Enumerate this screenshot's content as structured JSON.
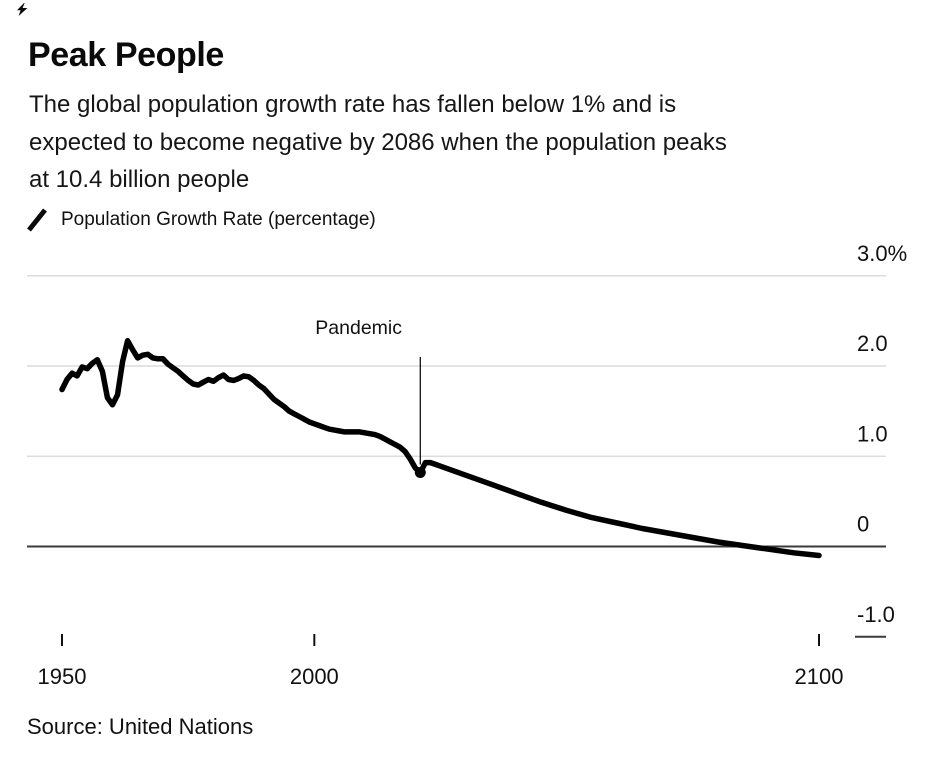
{
  "header": {
    "title": "Peak People",
    "subtitle_lines": [
      "The global population growth rate has fallen below 1% and is",
      "expected to become negative by 2086 when the population peaks",
      "at 10.4 billion people"
    ]
  },
  "legend": {
    "label": "Population Growth Rate (percentage)",
    "swatch": "diagonal-line"
  },
  "footer": {
    "source": "Source: United Nations"
  },
  "icons": {
    "top_left": "bolt-icon",
    "legend_swatch": "line-swatch-icon"
  },
  "colors": {
    "background": "#ffffff",
    "text": "#111111",
    "series_line": "#000000",
    "gridline": "#dcdcdc",
    "axis_line": "#3a3a3a"
  },
  "chart_data": {
    "type": "line",
    "title": "Peak People",
    "xlabel": "",
    "ylabel": "Population growth rate (%)",
    "x_range": [
      1950,
      2100
    ],
    "y_range": [
      -1.0,
      3.0
    ],
    "grid": "horizontal",
    "legend_position": "top-left",
    "yticks": [
      {
        "label": "3.0%",
        "value": 3.0
      },
      {
        "label": "2.0",
        "value": 2.0
      },
      {
        "label": "1.0",
        "value": 1.0
      },
      {
        "label": "0",
        "value": 0.0
      },
      {
        "label": "-1.0",
        "value": -1.0
      }
    ],
    "xticks": [
      {
        "label": "1950",
        "year": 1950
      },
      {
        "label": "2000",
        "year": 2000
      },
      {
        "label": "2100",
        "year": 2100
      }
    ],
    "annotation": {
      "label": "Pandemic",
      "year": 2021,
      "value": 0.82
    },
    "series": [
      {
        "name": "Population Growth Rate (percentage)",
        "points": [
          [
            1950,
            1.74
          ],
          [
            1951,
            1.85
          ],
          [
            1952,
            1.92
          ],
          [
            1953,
            1.89
          ],
          [
            1954,
            1.99
          ],
          [
            1955,
            1.97
          ],
          [
            1956,
            2.03
          ],
          [
            1957,
            2.07
          ],
          [
            1958,
            1.94
          ],
          [
            1959,
            1.65
          ],
          [
            1960,
            1.57
          ],
          [
            1961,
            1.68
          ],
          [
            1962,
            2.05
          ],
          [
            1963,
            2.28
          ],
          [
            1964,
            2.18
          ],
          [
            1965,
            2.09
          ],
          [
            1966,
            2.12
          ],
          [
            1967,
            2.13
          ],
          [
            1968,
            2.09
          ],
          [
            1969,
            2.08
          ],
          [
            1970,
            2.08
          ],
          [
            1971,
            2.02
          ],
          [
            1972,
            1.98
          ],
          [
            1973,
            1.94
          ],
          [
            1974,
            1.89
          ],
          [
            1975,
            1.84
          ],
          [
            1976,
            1.8
          ],
          [
            1977,
            1.79
          ],
          [
            1978,
            1.82
          ],
          [
            1979,
            1.85
          ],
          [
            1980,
            1.83
          ],
          [
            1981,
            1.87
          ],
          [
            1982,
            1.9
          ],
          [
            1983,
            1.85
          ],
          [
            1984,
            1.84
          ],
          [
            1985,
            1.86
          ],
          [
            1986,
            1.89
          ],
          [
            1987,
            1.88
          ],
          [
            1988,
            1.84
          ],
          [
            1989,
            1.79
          ],
          [
            1990,
            1.75
          ],
          [
            1991,
            1.69
          ],
          [
            1992,
            1.63
          ],
          [
            1993,
            1.59
          ],
          [
            1994,
            1.55
          ],
          [
            1995,
            1.5
          ],
          [
            1996,
            1.47
          ],
          [
            1997,
            1.44
          ],
          [
            1998,
            1.41
          ],
          [
            1999,
            1.38
          ],
          [
            2000,
            1.36
          ],
          [
            2001,
            1.34
          ],
          [
            2002,
            1.32
          ],
          [
            2003,
            1.3
          ],
          [
            2004,
            1.29
          ],
          [
            2005,
            1.28
          ],
          [
            2006,
            1.27
          ],
          [
            2007,
            1.27
          ],
          [
            2008,
            1.27
          ],
          [
            2009,
            1.27
          ],
          [
            2010,
            1.26
          ],
          [
            2011,
            1.25
          ],
          [
            2012,
            1.24
          ],
          [
            2013,
            1.22
          ],
          [
            2014,
            1.19
          ],
          [
            2015,
            1.16
          ],
          [
            2016,
            1.13
          ],
          [
            2017,
            1.1
          ],
          [
            2018,
            1.05
          ],
          [
            2019,
            0.97
          ],
          [
            2020,
            0.87
          ],
          [
            2021,
            0.82
          ],
          [
            2022,
            0.93
          ],
          [
            2023,
            0.93
          ],
          [
            2024,
            0.91
          ],
          [
            2025,
            0.89
          ],
          [
            2030,
            0.79
          ],
          [
            2035,
            0.69
          ],
          [
            2040,
            0.59
          ],
          [
            2045,
            0.49
          ],
          [
            2050,
            0.4
          ],
          [
            2055,
            0.32
          ],
          [
            2060,
            0.26
          ],
          [
            2065,
            0.2
          ],
          [
            2070,
            0.15
          ],
          [
            2075,
            0.1
          ],
          [
            2080,
            0.05
          ],
          [
            2085,
            0.01
          ],
          [
            2090,
            -0.03
          ],
          [
            2095,
            -0.07
          ],
          [
            2100,
            -0.1
          ]
        ]
      }
    ]
  }
}
